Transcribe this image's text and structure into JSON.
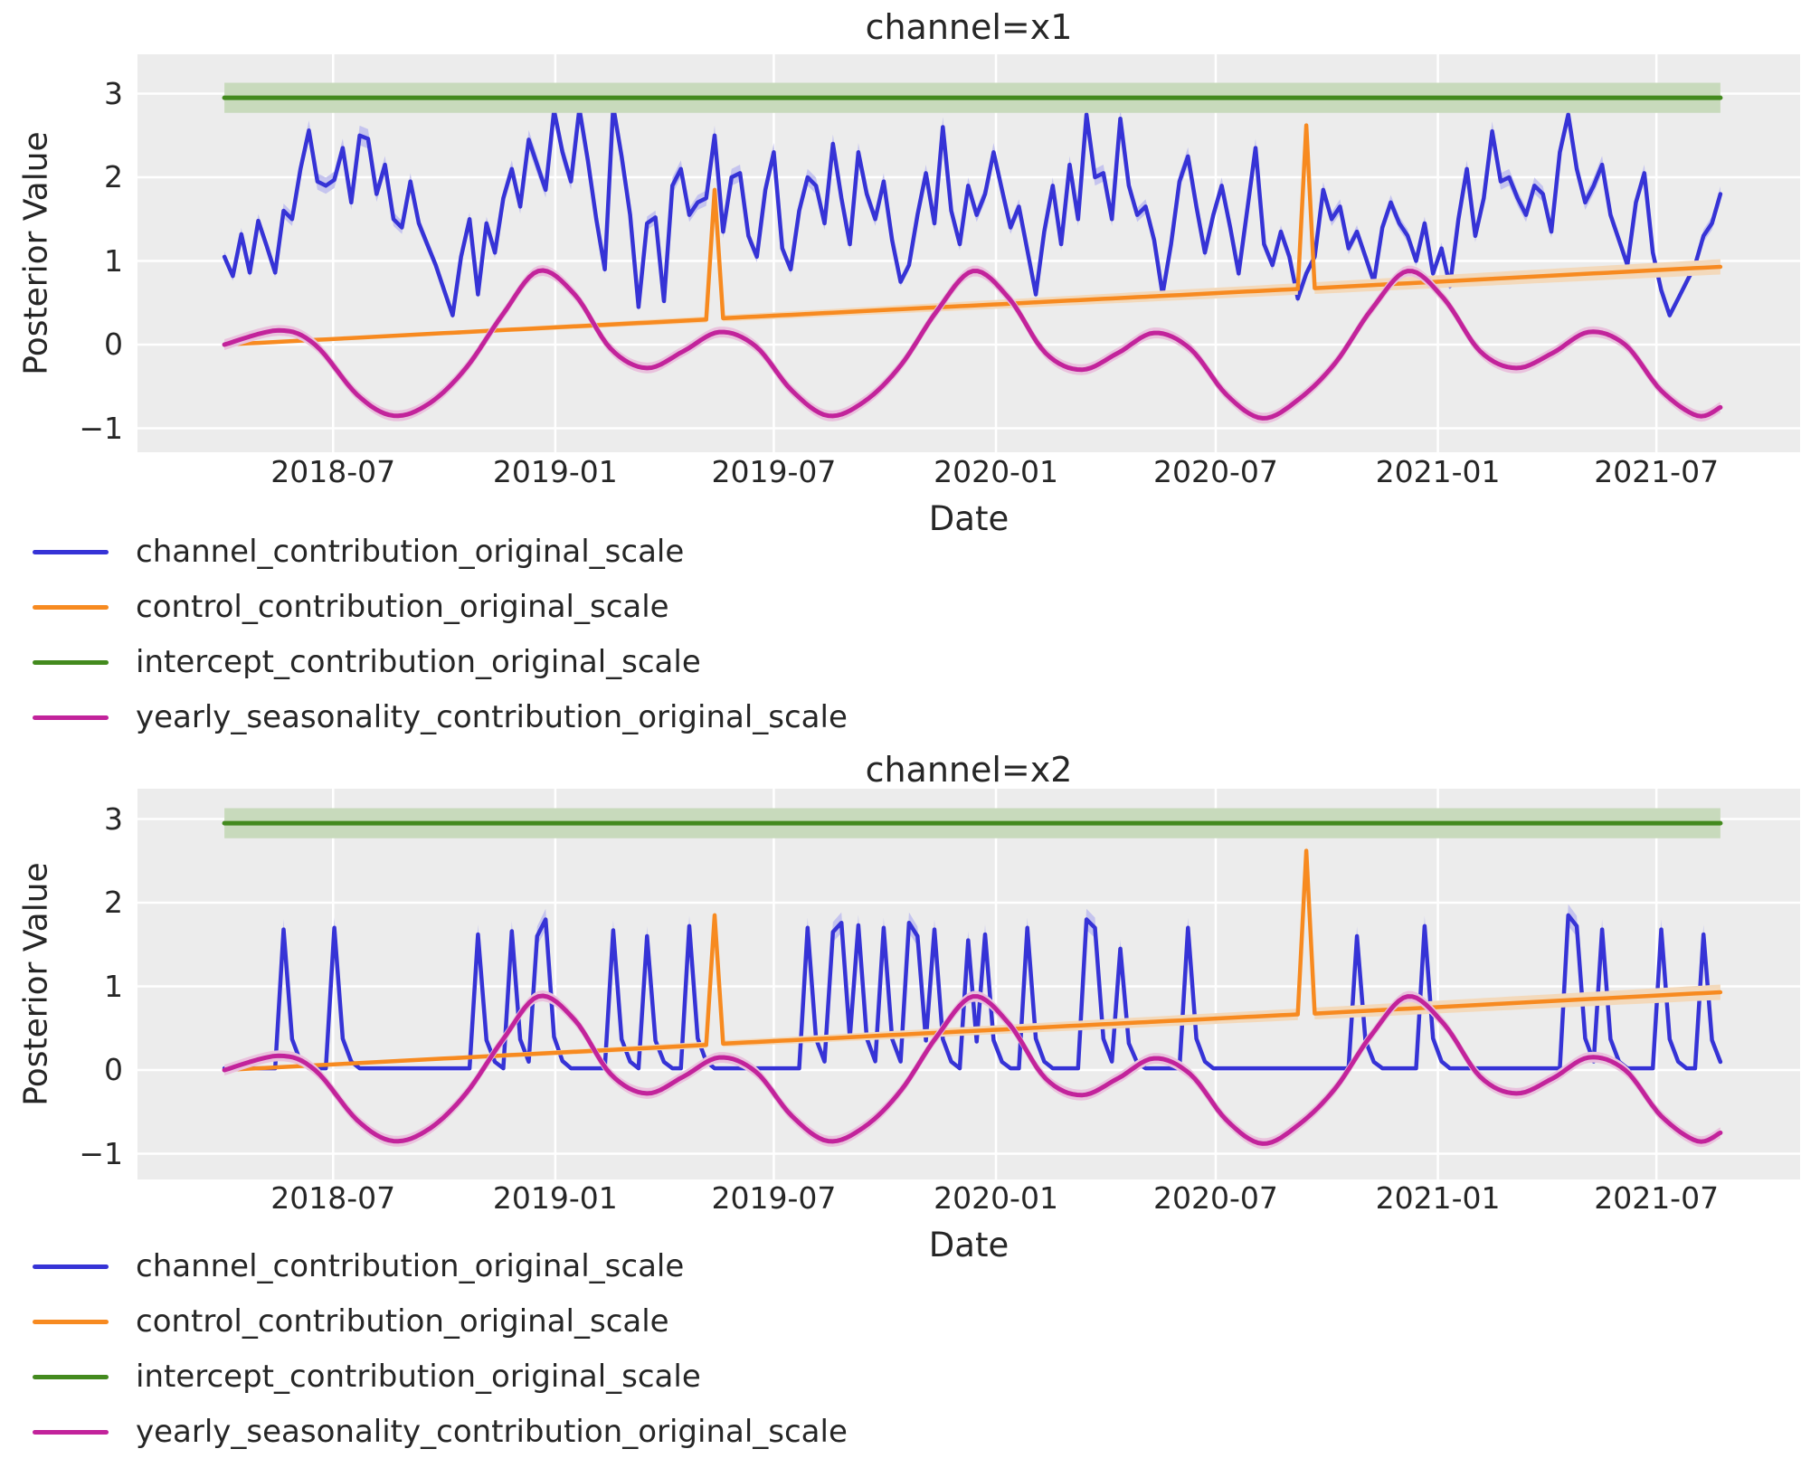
{
  "colors": {
    "background": "#ffffff",
    "plot_bg": "#ececec",
    "grid": "#ffffff",
    "text": "#262626",
    "blue": "#3633d6",
    "blue_band": "#c5c4ee",
    "orange": "#f78a20",
    "orange_band": "#f3d9bb",
    "green": "#438a1e",
    "green_band": "#c8dabc",
    "magenta": "#c2239b",
    "magenta_band": "#e9c2dd"
  },
  "axes": {
    "ylabel": "Posterior Value",
    "xlabel": "Date",
    "yticks": [
      {
        "v": 3,
        "label": "3"
      },
      {
        "v": 2,
        "label": "2"
      },
      {
        "v": 1,
        "label": "1"
      },
      {
        "v": 0,
        "label": "0"
      },
      {
        "v": -1,
        "label": "−1"
      }
    ],
    "xticks": [
      {
        "day": 162,
        "label": "2018-07"
      },
      {
        "day": 346,
        "label": "2019-01"
      },
      {
        "day": 527,
        "label": "2019-07"
      },
      {
        "day": 711,
        "label": "2020-01"
      },
      {
        "day": 893,
        "label": "2020-07"
      },
      {
        "day": 1077,
        "label": "2021-01"
      },
      {
        "day": 1258,
        "label": "2021-07"
      }
    ],
    "x_total_days": 1377,
    "data_start_day": 72,
    "week_days": 7,
    "n_weeks": 178,
    "x_start_date": "2018-04-02"
  },
  "legend": [
    {
      "label": "channel_contribution_original_scale",
      "color_key": "blue"
    },
    {
      "label": "control_contribution_original_scale",
      "color_key": "orange"
    },
    {
      "label": "intercept_contribution_original_scale",
      "color_key": "green"
    },
    {
      "label": "yearly_seasonality_contribution_original_scale",
      "color_key": "magenta"
    }
  ],
  "chart_data": [
    {
      "type": "line",
      "title": "channel=x1",
      "series": [
        {
          "id": "channel",
          "label": "channel_contribution_original_scale",
          "color": "blue",
          "band_color": "blue_band",
          "width": 4.5,
          "kind": "weekly",
          "band_rule": {
            "base": 0.03,
            "scale": 0.035
          },
          "values": [
            1.05,
            0.82,
            1.32,
            0.86,
            1.48,
            1.18,
            0.86,
            1.6,
            1.5,
            2.1,
            2.56,
            1.95,
            1.9,
            1.97,
            2.35,
            1.7,
            2.5,
            2.46,
            1.8,
            2.15,
            1.5,
            1.4,
            1.95,
            1.45,
            1.2,
            0.95,
            0.65,
            0.35,
            1.05,
            1.5,
            0.6,
            1.45,
            1.1,
            1.75,
            2.1,
            1.65,
            2.45,
            2.15,
            1.85,
            2.8,
            2.3,
            1.95,
            2.82,
            2.2,
            1.5,
            0.9,
            2.85,
            2.25,
            1.55,
            0.45,
            1.45,
            1.52,
            0.52,
            1.9,
            2.1,
            1.55,
            1.7,
            1.75,
            2.5,
            1.35,
            2.0,
            2.05,
            1.3,
            1.05,
            1.85,
            2.3,
            1.15,
            0.9,
            1.6,
            2.0,
            1.9,
            1.45,
            2.4,
            1.75,
            1.2,
            2.3,
            1.8,
            1.5,
            1.95,
            1.25,
            0.75,
            0.95,
            1.55,
            2.05,
            1.45,
            2.6,
            1.6,
            1.2,
            1.9,
            1.55,
            1.8,
            2.3,
            1.85,
            1.4,
            1.65,
            1.13,
            0.6,
            1.35,
            1.9,
            1.2,
            2.15,
            1.5,
            2.75,
            2.0,
            2.05,
            1.5,
            2.7,
            1.9,
            1.55,
            1.65,
            1.25,
            0.6,
            1.2,
            1.95,
            2.25,
            1.65,
            1.1,
            1.55,
            1.9,
            1.4,
            0.85,
            1.6,
            2.35,
            1.2,
            0.95,
            1.35,
            1.05,
            0.55,
            0.85,
            1.05,
            1.85,
            1.5,
            1.65,
            1.15,
            1.35,
            1.05,
            0.75,
            1.4,
            1.7,
            1.45,
            1.3,
            1.0,
            1.45,
            0.85,
            1.15,
            0.7,
            1.5,
            2.1,
            1.3,
            1.75,
            2.55,
            1.95,
            2.0,
            1.75,
            1.55,
            1.9,
            1.8,
            1.35,
            2.3,
            2.75,
            2.1,
            1.7,
            1.9,
            2.15,
            1.55,
            1.25,
            0.95,
            1.7,
            2.05,
            1.1,
            0.65,
            0.35,
            0.55,
            0.75,
            0.95,
            1.3,
            1.45,
            1.8
          ]
        },
        {
          "id": "control",
          "label": "control_contribution_original_scale",
          "color": "orange",
          "band_color": "orange_band",
          "width": 4.5,
          "kind": "keypoints",
          "band_rule": {
            "base": 0.012,
            "per_week": 0.00045
          },
          "points_weeks": [
            [
              0,
              0.0
            ],
            [
              57,
              0.3
            ],
            [
              58,
              1.85
            ],
            [
              59,
              0.315
            ],
            [
              127,
              0.665
            ],
            [
              128,
              2.62
            ],
            [
              129,
              0.675
            ],
            [
              177,
              0.93
            ]
          ]
        },
        {
          "id": "intercept",
          "label": "intercept_contribution_original_scale",
          "color": "green",
          "band_color": "green_band",
          "width": 5,
          "kind": "constant",
          "value": 2.95,
          "band": [
            2.77,
            3.13
          ]
        },
        {
          "id": "seasonality",
          "label": "yearly_seasonality_contribution_original_scale",
          "color": "magenta",
          "band_color": "magenta_band",
          "width": 5,
          "kind": "smooth",
          "band_rule": {
            "base": 0.065,
            "scale": 0
          },
          "anchors_days": [
            [
              0,
              0.0
            ],
            [
              45,
              0.17
            ],
            [
              75,
              0.0
            ],
            [
              110,
              -0.6
            ],
            [
              140,
              -0.85
            ],
            [
              170,
              -0.7
            ],
            [
              200,
              -0.28
            ],
            [
              230,
              0.35
            ],
            [
              260,
              0.88
            ],
            [
              290,
              0.6
            ],
            [
              320,
              -0.05
            ],
            [
              350,
              -0.28
            ],
            [
              380,
              -0.08
            ],
            [
              410,
              0.15
            ],
            [
              440,
              -0.02
            ],
            [
              470,
              -0.55
            ],
            [
              500,
              -0.85
            ],
            [
              530,
              -0.68
            ],
            [
              560,
              -0.25
            ],
            [
              590,
              0.4
            ],
            [
              620,
              0.88
            ],
            [
              650,
              0.55
            ],
            [
              680,
              -0.1
            ],
            [
              710,
              -0.3
            ],
            [
              740,
              -0.1
            ],
            [
              770,
              0.14
            ],
            [
              800,
              -0.05
            ],
            [
              830,
              -0.6
            ],
            [
              860,
              -0.88
            ],
            [
              890,
              -0.65
            ],
            [
              920,
              -0.22
            ],
            [
              950,
              0.42
            ],
            [
              980,
              0.88
            ],
            [
              1010,
              0.55
            ],
            [
              1040,
              -0.08
            ],
            [
              1070,
              -0.28
            ],
            [
              1100,
              -0.1
            ],
            [
              1130,
              0.15
            ],
            [
              1160,
              0.0
            ],
            [
              1190,
              -0.55
            ],
            [
              1220,
              -0.85
            ],
            [
              1239,
              -0.75
            ]
          ]
        }
      ]
    },
    {
      "type": "line",
      "title": "channel=x2",
      "series": [
        {
          "id": "channel",
          "label": "channel_contribution_original_scale",
          "color": "blue",
          "band_color": "blue_band",
          "width": 4.5,
          "kind": "spikes",
          "band_rule": {
            "base": 0.02,
            "scale": 0.06
          },
          "baseline": 0.02,
          "decay": [
            0.22,
            0.06
          ],
          "spikes": [
            [
              7,
              1.68
            ],
            [
              13,
              1.7
            ],
            [
              30,
              1.62
            ],
            [
              34,
              1.66
            ],
            [
              37,
              1.6
            ],
            [
              38,
              1.8
            ],
            [
              46,
              1.67
            ],
            [
              50,
              1.6
            ],
            [
              55,
              1.72
            ],
            [
              69,
              1.7
            ],
            [
              72,
              1.65
            ],
            [
              73,
              1.76
            ],
            [
              75,
              1.73
            ],
            [
              78,
              1.7
            ],
            [
              81,
              1.76
            ],
            [
              82,
              1.6
            ],
            [
              84,
              1.68
            ],
            [
              88,
              1.55
            ],
            [
              90,
              1.62
            ],
            [
              95,
              1.7
            ],
            [
              102,
              1.8
            ],
            [
              103,
              1.7
            ],
            [
              106,
              1.45
            ],
            [
              114,
              1.7
            ],
            [
              134,
              1.6
            ],
            [
              142,
              1.72
            ],
            [
              159,
              1.85
            ],
            [
              160,
              1.72
            ],
            [
              163,
              1.68
            ],
            [
              170,
              1.68
            ],
            [
              175,
              1.62
            ]
          ]
        },
        {
          "id": "control",
          "label": "control_contribution_original_scale",
          "color": "orange",
          "band_color": "orange_band",
          "width": 4.5,
          "kind": "keypoints",
          "band_rule": {
            "base": 0.012,
            "per_week": 0.00045
          },
          "points_weeks": [
            [
              0,
              0.0
            ],
            [
              57,
              0.3
            ],
            [
              58,
              1.85
            ],
            [
              59,
              0.315
            ],
            [
              127,
              0.665
            ],
            [
              128,
              2.62
            ],
            [
              129,
              0.675
            ],
            [
              177,
              0.93
            ]
          ]
        },
        {
          "id": "intercept",
          "label": "intercept_contribution_original_scale",
          "color": "green",
          "band_color": "green_band",
          "width": 5,
          "kind": "constant",
          "value": 2.95,
          "band": [
            2.77,
            3.13
          ]
        },
        {
          "id": "seasonality",
          "label": "yearly_seasonality_contribution_original_scale",
          "color": "magenta",
          "band_color": "magenta_band",
          "width": 5,
          "kind": "smooth",
          "band_rule": {
            "base": 0.065,
            "scale": 0
          },
          "anchors_days": [
            [
              0,
              0.0
            ],
            [
              45,
              0.17
            ],
            [
              75,
              0.0
            ],
            [
              110,
              -0.6
            ],
            [
              140,
              -0.85
            ],
            [
              170,
              -0.7
            ],
            [
              200,
              -0.28
            ],
            [
              230,
              0.35
            ],
            [
              260,
              0.88
            ],
            [
              290,
              0.6
            ],
            [
              320,
              -0.05
            ],
            [
              350,
              -0.28
            ],
            [
              380,
              -0.08
            ],
            [
              410,
              0.15
            ],
            [
              440,
              -0.02
            ],
            [
              470,
              -0.55
            ],
            [
              500,
              -0.85
            ],
            [
              530,
              -0.68
            ],
            [
              560,
              -0.25
            ],
            [
              590,
              0.4
            ],
            [
              620,
              0.88
            ],
            [
              650,
              0.55
            ],
            [
              680,
              -0.1
            ],
            [
              710,
              -0.3
            ],
            [
              740,
              -0.1
            ],
            [
              770,
              0.14
            ],
            [
              800,
              -0.05
            ],
            [
              830,
              -0.6
            ],
            [
              860,
              -0.88
            ],
            [
              890,
              -0.65
            ],
            [
              920,
              -0.22
            ],
            [
              950,
              0.42
            ],
            [
              980,
              0.88
            ],
            [
              1010,
              0.55
            ],
            [
              1040,
              -0.08
            ],
            [
              1070,
              -0.28
            ],
            [
              1100,
              -0.1
            ],
            [
              1130,
              0.15
            ],
            [
              1160,
              0.0
            ],
            [
              1190,
              -0.55
            ],
            [
              1220,
              -0.85
            ],
            [
              1239,
              -0.75
            ]
          ]
        }
      ]
    }
  ],
  "layout_note": {
    "subplot1_title": "channel=x1",
    "subplot2_title": "channel=x2"
  }
}
